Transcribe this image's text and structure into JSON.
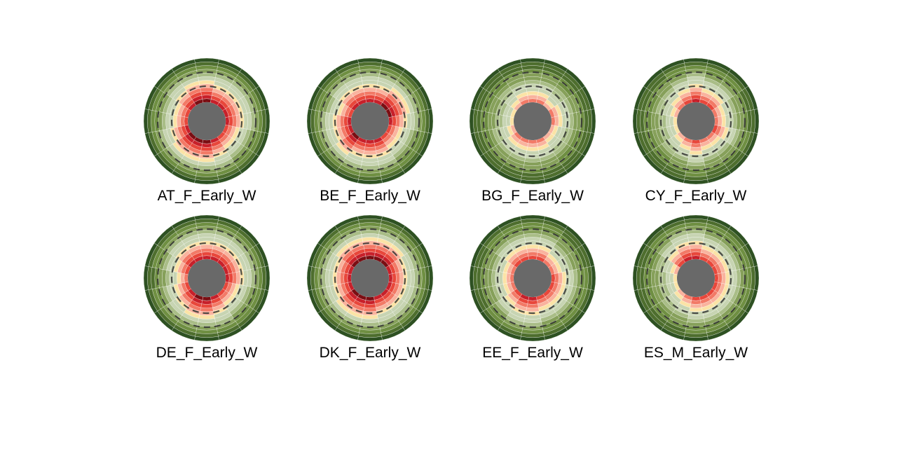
{
  "colors": {
    "center": "#696969",
    "dashed": "#333333",
    "palette": [
      "#7b0e13",
      "#c7202a",
      "#e8473b",
      "#f27a67",
      "#f9b39e",
      "#fbe3a6",
      "#c7d4b2",
      "#a9bd87",
      "#86a05a",
      "#6f8f42",
      "#4e6e2e",
      "#2e5122"
    ]
  },
  "chart_data": [
    {
      "type": "polar-stacked",
      "title": "AT_F_Early_W",
      "segments": 16,
      "levels": [
        6,
        5,
        5,
        5,
        5,
        4,
        4,
        5,
        6,
        6,
        6,
        5,
        4,
        4,
        5,
        6
      ]
    },
    {
      "type": "polar-stacked",
      "title": "BE_F_Early_W",
      "segments": 16,
      "levels": [
        5,
        5,
        6,
        6,
        5,
        4,
        4,
        5,
        5,
        5,
        6,
        5,
        5,
        4,
        5,
        5
      ]
    },
    {
      "type": "polar-stacked",
      "title": "BG_F_Early_W",
      "segments": 16,
      "levels": [
        3,
        3,
        2,
        3,
        3,
        2,
        2,
        3,
        3,
        3,
        3,
        2,
        1,
        1,
        2,
        3
      ]
    },
    {
      "type": "polar-stacked",
      "title": "CY_F_Early_W",
      "segments": 16,
      "levels": [
        5,
        4,
        4,
        3,
        3,
        4,
        3,
        3,
        4,
        3,
        2,
        1,
        1,
        2,
        3,
        4
      ]
    },
    {
      "type": "polar-stacked",
      "title": "DE_F_Early_W",
      "segments": 16,
      "levels": [
        5,
        5,
        5,
        5,
        5,
        4,
        4,
        5,
        6,
        6,
        5,
        4,
        3,
        4,
        5,
        5
      ]
    },
    {
      "type": "polar-stacked",
      "title": "DK_F_Early_W",
      "segments": 16,
      "levels": [
        6,
        6,
        6,
        5,
        5,
        5,
        5,
        5,
        6,
        6,
        6,
        5,
        5,
        5,
        6,
        6
      ]
    },
    {
      "type": "polar-stacked",
      "title": "EE_F_Early_W",
      "segments": 16,
      "levels": [
        4,
        4,
        3,
        3,
        4,
        4,
        4,
        4,
        5,
        5,
        4,
        3,
        3,
        3,
        4,
        4
      ]
    },
    {
      "type": "polar-stacked",
      "title": "ES_M_Early_W",
      "segments": 16,
      "levels": [
        5,
        4,
        4,
        4,
        4,
        4,
        4,
        4,
        4,
        3,
        2,
        1,
        1,
        2,
        4,
        5
      ]
    }
  ]
}
